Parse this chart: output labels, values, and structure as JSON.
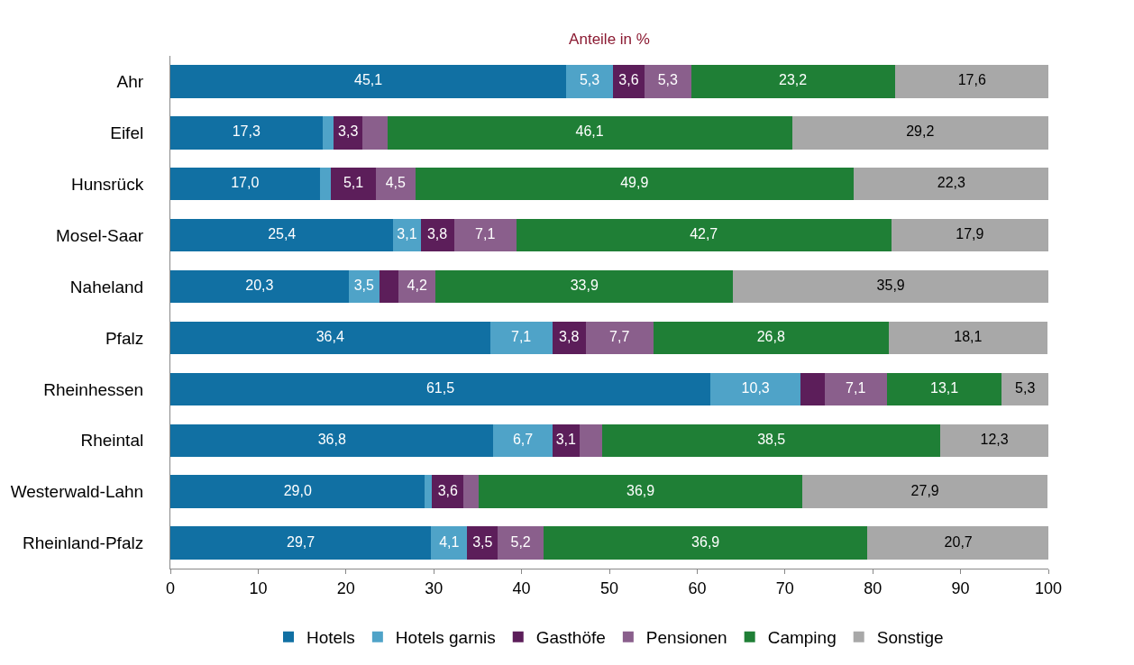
{
  "chart_data": {
    "type": "bar",
    "orientation": "horizontal",
    "stacked": true,
    "title": "Anteile in %",
    "categories": [
      "Ahr",
      "Eifel",
      "Hunsrück",
      "Mosel-Saar",
      "Naheland",
      "Pfalz",
      "Rheinhessen",
      "Rheintal",
      "Westerwald-Lahn",
      "Rheinland-Pfalz"
    ],
    "series": [
      {
        "name": "Hotels",
        "color": "#1170a3",
        "values": [
          45.1,
          17.3,
          17.0,
          25.4,
          20.3,
          36.4,
          61.5,
          36.8,
          29.0,
          29.7
        ],
        "value_labels": [
          "45,1",
          "17,3",
          "17,0",
          "25,4",
          "20,3",
          "36,4",
          "61,5",
          "36,8",
          "29,0",
          "29,7"
        ]
      },
      {
        "name": "Hotels garnis",
        "color": "#4fa3c8",
        "values": [
          5.3,
          1.3,
          1.3,
          3.1,
          3.5,
          7.1,
          10.3,
          6.7,
          0.8,
          4.1
        ],
        "value_labels": [
          "5,3",
          null,
          null,
          "3,1",
          "3,5",
          "7,1",
          "10,3",
          "6,7",
          null,
          "4,1"
        ]
      },
      {
        "name": "Gasthöfe",
        "color": "#5c1e5a",
        "values": [
          3.6,
          3.3,
          5.1,
          3.8,
          2.2,
          3.8,
          2.7,
          3.1,
          3.6,
          3.5
        ],
        "value_labels": [
          "3,6",
          "3,3",
          "5,1",
          "3,8",
          null,
          "3,8",
          null,
          "3,1",
          "3,6",
          "3,5"
        ]
      },
      {
        "name": "Pensionen",
        "color": "#8a5f8c",
        "values": [
          5.3,
          2.8,
          4.5,
          7.1,
          4.2,
          7.7,
          7.1,
          2.6,
          1.7,
          5.2
        ],
        "value_labels": [
          "5,3",
          null,
          "4,5",
          "7,1",
          "4,2",
          "7,7",
          "7,1",
          null,
          null,
          "5,2"
        ]
      },
      {
        "name": "Camping",
        "color": "#1f7f36",
        "values": [
          23.2,
          46.1,
          49.9,
          42.7,
          33.9,
          26.8,
          13.1,
          38.5,
          36.9,
          36.9
        ],
        "value_labels": [
          "23,2",
          "46,1",
          "49,9",
          "42,7",
          "33,9",
          "26,8",
          "13,1",
          "38,5",
          "36,9",
          "36,9"
        ]
      },
      {
        "name": "Sonstige",
        "color": "#a8a8a8",
        "values": [
          17.6,
          29.2,
          22.3,
          17.9,
          35.9,
          18.1,
          5.3,
          12.3,
          27.9,
          20.7
        ],
        "value_labels": [
          "17,6",
          "29,2",
          "22,3",
          "17,9",
          "35,9",
          "18,1",
          "5,3",
          "12,3",
          "27,9",
          "20,7"
        ]
      }
    ],
    "xlim": [
      0,
      100
    ],
    "xticks": [
      0,
      10,
      20,
      30,
      40,
      50,
      60,
      70,
      80,
      90,
      100
    ],
    "legend": "bottom"
  }
}
